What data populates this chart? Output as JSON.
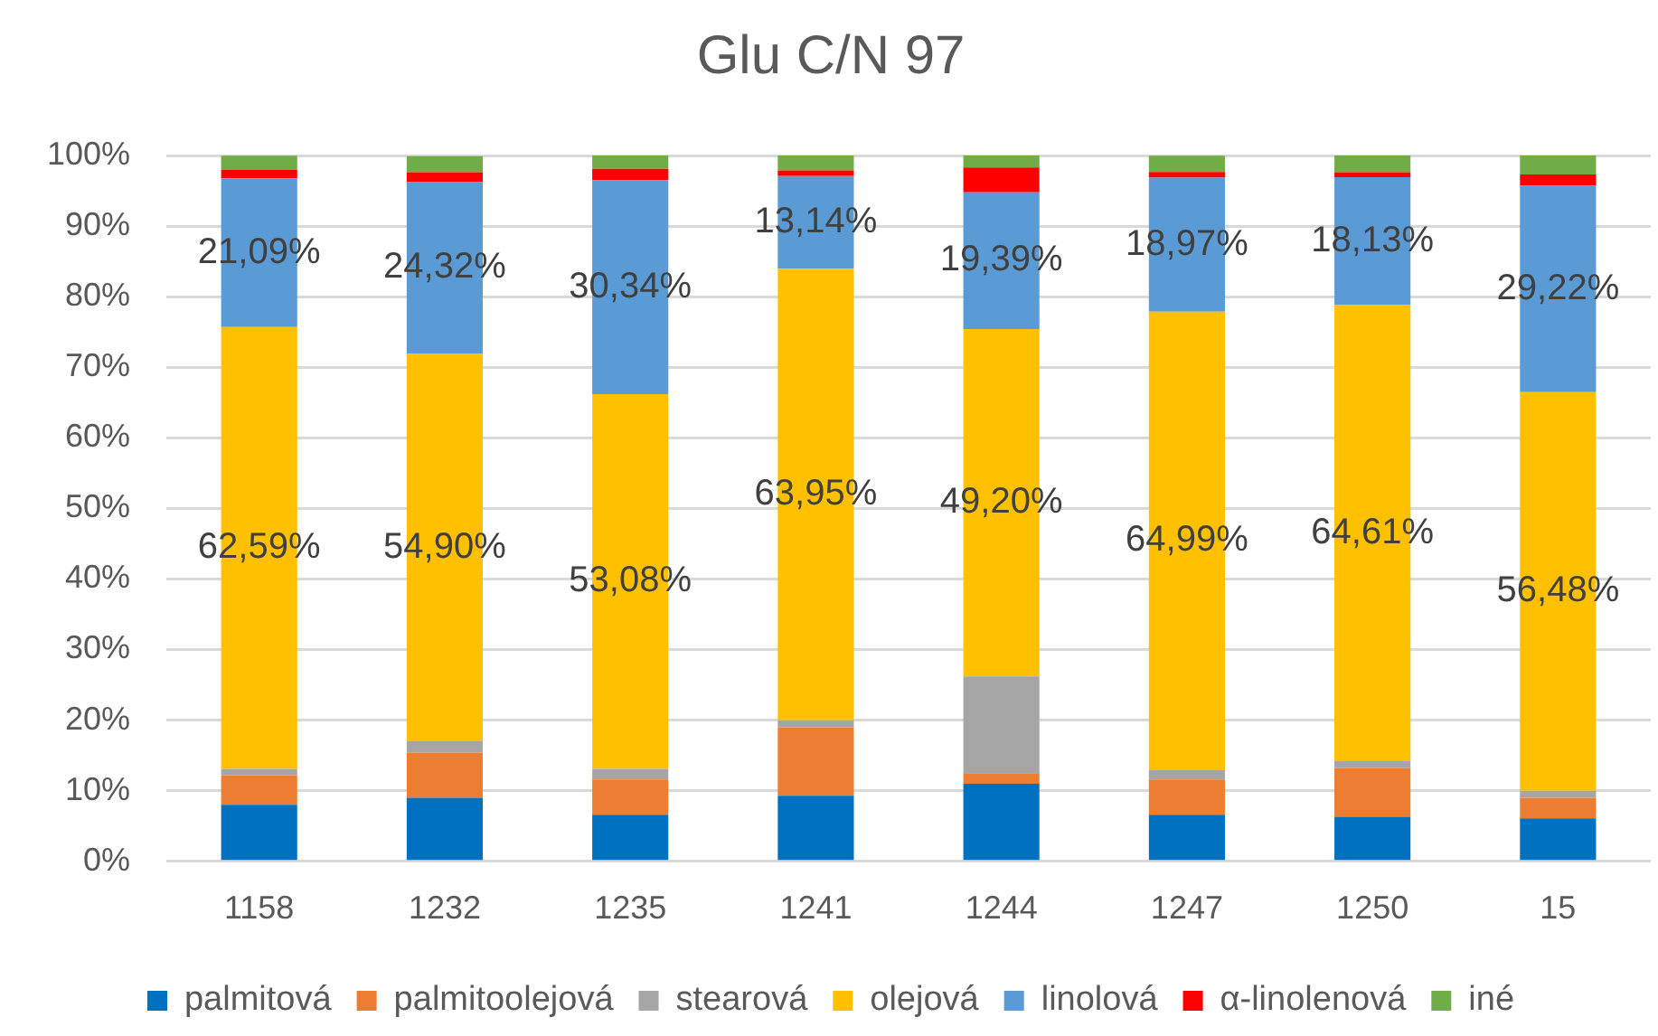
{
  "chart_data": {
    "type": "bar",
    "title": "Glu C/N 97",
    "categories": [
      "1158",
      "1232",
      "1235",
      "1241",
      "1244",
      "1247",
      "1250",
      "15"
    ],
    "series": [
      {
        "name": "palmitová",
        "color": "#0070c0",
        "values": [
          8.0,
          9.0,
          6.6,
          9.3,
          11.0,
          6.6,
          6.3,
          6.1
        ]
      },
      {
        "name": "palmitoolejová",
        "color": "#ed7d31",
        "values": [
          4.2,
          6.4,
          5.0,
          9.7,
          1.5,
          5.0,
          6.9,
          2.9
        ]
      },
      {
        "name": "stearová",
        "color": "#a5a5a5",
        "values": [
          0.9,
          1.6,
          1.5,
          1.0,
          13.7,
          1.3,
          1.0,
          1.0
        ]
      },
      {
        "name": "olejová",
        "color": "#ffc000",
        "values": [
          62.59,
          54.9,
          53.08,
          63.95,
          49.2,
          64.99,
          64.61,
          56.48
        ],
        "value_labels": [
          "62,59%",
          "54,90%",
          "53,08%",
          "63,95%",
          "49,20%",
          "64,99%",
          "64,61%",
          "56,48%"
        ]
      },
      {
        "name": "linolová",
        "color": "#5b9bd5",
        "values": [
          21.09,
          24.32,
          30.34,
          13.14,
          19.39,
          18.97,
          18.13,
          29.22
        ],
        "value_labels": [
          "21,09%",
          "24,32%",
          "30,34%",
          "13,14%",
          "19,39%",
          "18,97%",
          "18,13%",
          "29,22%"
        ]
      },
      {
        "name": "α-linolenová",
        "color": "#ff0000",
        "values": [
          1.2,
          1.4,
          1.6,
          0.8,
          3.5,
          0.8,
          0.7,
          1.6
        ]
      },
      {
        "name": "iné",
        "color": "#70ad47",
        "values": [
          2.0,
          2.3,
          1.9,
          2.1,
          1.7,
          2.3,
          2.4,
          2.7
        ]
      }
    ],
    "stacked": true,
    "ylim": [
      0,
      100
    ],
    "yticks": [
      {
        "value": 0,
        "label": "0%"
      },
      {
        "value": 10,
        "label": "10%"
      },
      {
        "value": 20,
        "label": "20%"
      },
      {
        "value": 30,
        "label": "30%"
      },
      {
        "value": 40,
        "label": "40%"
      },
      {
        "value": 50,
        "label": "50%"
      },
      {
        "value": 60,
        "label": "60%"
      },
      {
        "value": 70,
        "label": "70%"
      },
      {
        "value": 80,
        "label": "80%"
      },
      {
        "value": 90,
        "label": "90%"
      },
      {
        "value": 100,
        "label": "100%"
      }
    ],
    "grid": "y",
    "legend": "bottom"
  }
}
